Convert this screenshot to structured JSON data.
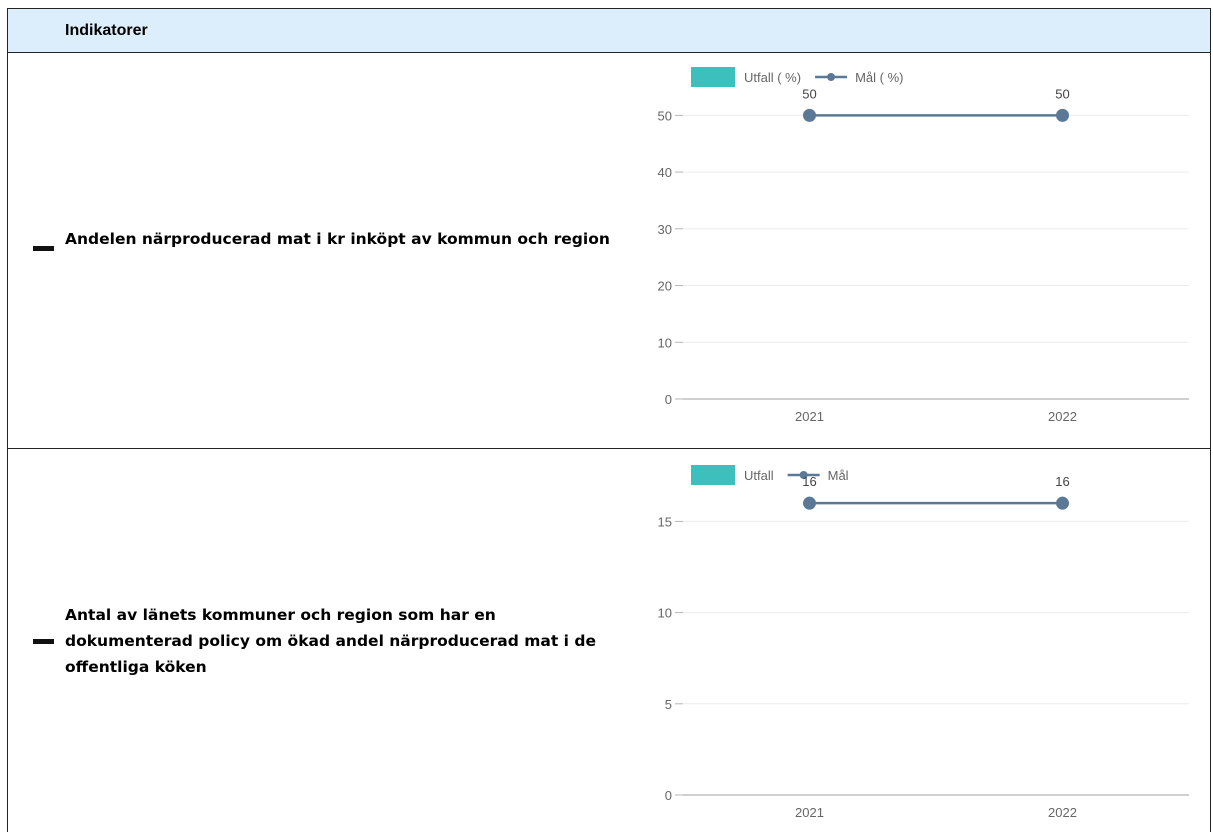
{
  "header": {
    "title": "Indikatorer"
  },
  "indicators": [
    {
      "name": "Andelen närproducerad mat i kr inköpt av kommun och region"
    },
    {
      "name": "Antal av länets kommuner och region som har en dokumenterad policy om ökad andel närproducerad mat i de offentliga köken"
    }
  ],
  "colors": {
    "utfall": "#3dbfbd",
    "mal": "#5b7896",
    "grid": "#ececec",
    "axis": "#b5b5b5"
  },
  "chart_data": [
    {
      "type": "line",
      "legend": {
        "utfall": "Utfall ( %)",
        "mal": "Mål ( %)"
      },
      "categories": [
        "2021",
        "2022"
      ],
      "series": [
        {
          "name": "Utfall ( %)",
          "values": [
            null,
            null
          ]
        },
        {
          "name": "Mål ( %)",
          "values": [
            50,
            50
          ]
        }
      ],
      "yticks": [
        0,
        10,
        20,
        30,
        40,
        50
      ],
      "ylim": [
        0,
        55
      ],
      "grid": true
    },
    {
      "type": "line",
      "legend": {
        "utfall": "Utfall",
        "mal": "Mål"
      },
      "categories": [
        "2021",
        "2022"
      ],
      "series": [
        {
          "name": "Utfall",
          "values": [
            null,
            null
          ]
        },
        {
          "name": "Mål",
          "values": [
            16,
            16
          ]
        }
      ],
      "yticks": [
        0,
        5,
        10,
        15
      ],
      "ylim": [
        0,
        17.6
      ],
      "grid": true
    }
  ]
}
